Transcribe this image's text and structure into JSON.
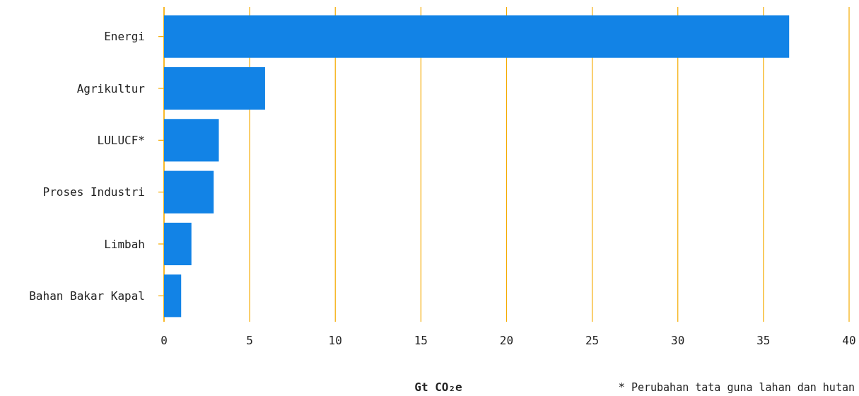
{
  "chart_data": {
    "type": "bar",
    "orientation": "horizontal",
    "categories": [
      "Energi",
      "Agrikultur",
      "LULUCF*",
      "Proses Industri",
      "Limbah",
      "Bahan Bakar Kapal"
    ],
    "values": [
      36.5,
      5.9,
      3.2,
      2.9,
      1.6,
      1.0
    ],
    "color": "#1283e6",
    "xlim": [
      0,
      40
    ],
    "xticks": [
      0,
      5,
      10,
      15,
      20,
      25,
      30,
      35,
      40
    ],
    "grid": "x",
    "xlabel": "Gt CO₂e",
    "annotations": [
      "* Perubahan tata guna lahan dan hutan"
    ]
  }
}
